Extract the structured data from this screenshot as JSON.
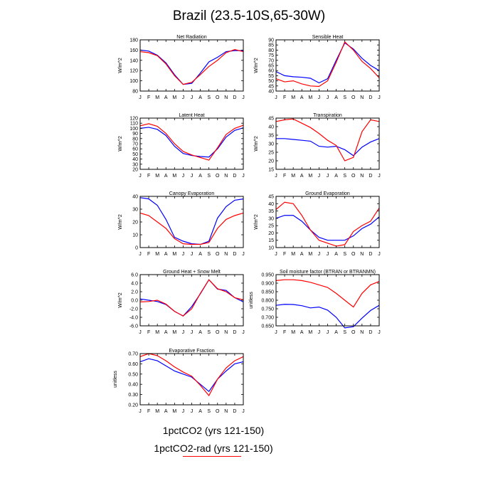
{
  "page": {
    "title": "Brazil (23.5-10S,65-30W)"
  },
  "legend": {
    "items": [
      {
        "label": "1pctCO2 (yrs 121-150)",
        "color": "#0000ff",
        "line_shown": false
      },
      {
        "label": "1pctCO2-rad (yrs 121-150)",
        "color": "#ff0000",
        "line_shown": true
      }
    ]
  },
  "chart_data": [
    {
      "type": "line",
      "title": "Net Radiation",
      "ylabel": "W/m^2",
      "x": [
        "J",
        "F",
        "M",
        "A",
        "M",
        "J",
        "J",
        "A",
        "S",
        "O",
        "N",
        "D",
        "J"
      ],
      "ylim": [
        80,
        180
      ],
      "yticks": [
        "80",
        "100",
        "120",
        "140",
        "160",
        "180"
      ],
      "series": [
        {
          "color": "#0000ff",
          "values": [
            160,
            158,
            150,
            135,
            112,
            93,
            95,
            115,
            137,
            146,
            157,
            159,
            159
          ]
        },
        {
          "color": "#ff0000",
          "values": [
            157,
            155,
            149,
            133,
            110,
            93,
            97,
            112,
            128,
            140,
            155,
            161,
            157
          ]
        }
      ]
    },
    {
      "type": "line",
      "title": "Sensible Heat",
      "ylabel": "W/m^2",
      "x": [
        "J",
        "F",
        "M",
        "A",
        "M",
        "J",
        "J",
        "A",
        "S",
        "O",
        "N",
        "D",
        "J"
      ],
      "ylim": [
        40,
        90
      ],
      "yticks": [
        "40",
        "45",
        "50",
        "55",
        "60",
        "65",
        "70",
        "75",
        "80",
        "85",
        "90"
      ],
      "series": [
        {
          "color": "#0000ff",
          "values": [
            59,
            55,
            54,
            53.5,
            52.5,
            48,
            52,
            70,
            87,
            81,
            72,
            65,
            60
          ]
        },
        {
          "color": "#ff0000",
          "values": [
            52,
            49,
            50,
            47,
            45,
            44.5,
            50,
            68,
            88,
            80,
            69,
            62,
            53
          ]
        }
      ]
    },
    {
      "type": "line",
      "title": "Latent Heat",
      "ylabel": "W/m^2",
      "x": [
        "J",
        "F",
        "M",
        "A",
        "M",
        "J",
        "J",
        "A",
        "S",
        "O",
        "N",
        "D",
        "J"
      ],
      "ylim": [
        20,
        120
      ],
      "yticks": [
        "20",
        "30",
        "40",
        "50",
        "60",
        "70",
        "80",
        "90",
        "100",
        "110",
        "120"
      ],
      "series": [
        {
          "color": "#0000ff",
          "values": [
            100,
            102,
            98,
            86,
            65,
            51,
            47,
            45,
            44,
            60,
            83,
            96,
            101
          ]
        },
        {
          "color": "#ff0000",
          "values": [
            105,
            109,
            104,
            90,
            70,
            55,
            48,
            43,
            38,
            62,
            88,
            100,
            106
          ]
        }
      ]
    },
    {
      "type": "line",
      "title": "Transpiration",
      "ylabel": "W/m^2",
      "x": [
        "J",
        "F",
        "M",
        "A",
        "M",
        "J",
        "J",
        "A",
        "S",
        "O",
        "N",
        "D",
        "J"
      ],
      "ylim": [
        15,
        45
      ],
      "yticks": [
        "15",
        "20",
        "25",
        "30",
        "35",
        "40",
        "45"
      ],
      "series": [
        {
          "color": "#0000ff",
          "values": [
            33,
            33,
            32.5,
            32,
            31.5,
            28.5,
            28,
            28.5,
            26.5,
            23,
            28,
            31,
            33
          ]
        },
        {
          "color": "#ff0000",
          "values": [
            43,
            44,
            44.5,
            42,
            39.5,
            36,
            32,
            29,
            20,
            22,
            37,
            44,
            43
          ]
        }
      ]
    },
    {
      "type": "line",
      "title": "Canopy Evaporation",
      "ylabel": "W/m^2",
      "x": [
        "J",
        "F",
        "M",
        "A",
        "M",
        "J",
        "J",
        "A",
        "S",
        "O",
        "N",
        "D",
        "J"
      ],
      "ylim": [
        0,
        40
      ],
      "yticks": [
        "0",
        "10",
        "20",
        "30",
        "40"
      ],
      "series": [
        {
          "color": "#0000ff",
          "values": [
            39,
            38,
            33,
            22,
            8,
            5,
            3,
            2.5,
            5,
            23,
            32,
            37,
            38
          ]
        },
        {
          "color": "#ff0000",
          "values": [
            27,
            25,
            20,
            15,
            7,
            3,
            2.5,
            2.5,
            4,
            15,
            22,
            25,
            27
          ]
        }
      ]
    },
    {
      "type": "line",
      "title": "Ground Evaporation",
      "ylabel": "W/m^2",
      "x": [
        "J",
        "F",
        "M",
        "A",
        "M",
        "J",
        "J",
        "A",
        "S",
        "O",
        "N",
        "D",
        "J"
      ],
      "ylim": [
        10,
        45
      ],
      "yticks": [
        "10",
        "15",
        "20",
        "25",
        "30",
        "35",
        "40",
        "45"
      ],
      "series": [
        {
          "color": "#0000ff",
          "values": [
            30,
            32,
            32,
            28,
            22,
            17,
            15,
            15,
            15,
            18,
            23,
            26,
            31
          ]
        },
        {
          "color": "#ff0000",
          "values": [
            36,
            41,
            40,
            32,
            22,
            15,
            13,
            11,
            12,
            21,
            25,
            28,
            37
          ]
        }
      ]
    },
    {
      "type": "line",
      "title": "Ground Heat + Snow Melt",
      "ylabel": "W/m^2",
      "x": [
        "J",
        "F",
        "M",
        "A",
        "M",
        "J",
        "J",
        "A",
        "S",
        "O",
        "N",
        "D",
        "J"
      ],
      "ylim": [
        -6,
        6
      ],
      "yticks": [
        "-6.0",
        "-4.0",
        "-2.0",
        "0.0",
        "2.0",
        "4.0",
        "6.0"
      ],
      "series": [
        {
          "color": "#0000ff",
          "values": [
            0.3,
            0,
            -0.3,
            -1.0,
            -2.6,
            -3.7,
            -1.5,
            1.5,
            4.8,
            2.6,
            2.3,
            0.6,
            -0.4
          ]
        },
        {
          "color": "#ff0000",
          "values": [
            -0.4,
            -0.3,
            0,
            -0.9,
            -2.6,
            -3.7,
            -2.0,
            1.6,
            4.8,
            2.7,
            2.0,
            0.6,
            0.1
          ]
        }
      ]
    },
    {
      "type": "line",
      "title": "Soil moisture factor (BTRAN or BTRANMN)",
      "ylabel": "unitless",
      "x": [
        "J",
        "F",
        "M",
        "A",
        "M",
        "J",
        "J",
        "A",
        "S",
        "O",
        "N",
        "D",
        "J"
      ],
      "ylim": [
        0.65,
        0.95
      ],
      "yticks": [
        "0.650",
        "0.700",
        "0.750",
        "0.800",
        "0.850",
        "0.900",
        "0.950"
      ],
      "series": [
        {
          "color": "#0000ff",
          "values": [
            0.77,
            0.776,
            0.775,
            0.768,
            0.755,
            0.76,
            0.742,
            0.7,
            0.638,
            0.645,
            0.695,
            0.74,
            0.77
          ]
        },
        {
          "color": "#ff0000",
          "values": [
            0.915,
            0.92,
            0.92,
            0.915,
            0.905,
            0.89,
            0.875,
            0.84,
            0.8,
            0.76,
            0.84,
            0.89,
            0.91
          ]
        }
      ]
    },
    {
      "type": "line",
      "title": "Evaporative Fraction",
      "ylabel": "unitless",
      "x": [
        "J",
        "F",
        "M",
        "A",
        "M",
        "J",
        "J",
        "A",
        "S",
        "O",
        "N",
        "D",
        "J"
      ],
      "ylim": [
        0.2,
        0.7
      ],
      "yticks": [
        "0.20",
        "0.30",
        "0.40",
        "0.50",
        "0.60",
        "0.70"
      ],
      "series": [
        {
          "color": "#0000ff",
          "values": [
            0.62,
            0.65,
            0.63,
            0.58,
            0.53,
            0.5,
            0.47,
            0.4,
            0.33,
            0.45,
            0.53,
            0.6,
            0.62
          ]
        },
        {
          "color": "#ff0000",
          "values": [
            0.67,
            0.7,
            0.68,
            0.63,
            0.57,
            0.52,
            0.48,
            0.39,
            0.29,
            0.45,
            0.56,
            0.63,
            0.67
          ]
        }
      ]
    }
  ]
}
